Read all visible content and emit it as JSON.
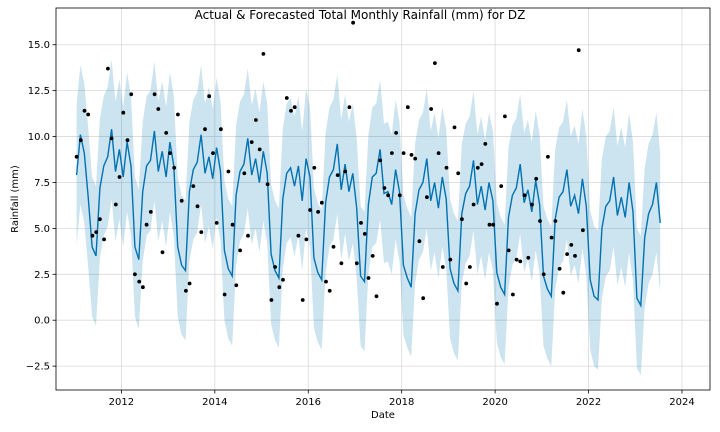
{
  "chart_data": {
    "type": "line",
    "title": "Actual & Forecasted Total Monthly Rainfall (mm) for DZ",
    "xlabel": "Date",
    "ylabel": "Rainfall (mm)",
    "xlim": [
      2010.6,
      2024.6
    ],
    "ylim": [
      -3.8,
      17.0
    ],
    "x_ticks": [
      2012,
      2014,
      2016,
      2018,
      2020,
      2022,
      2024
    ],
    "y_ticks": [
      -2.5,
      0.0,
      2.5,
      5.0,
      7.5,
      10.0,
      12.5,
      15.0
    ],
    "grid": true,
    "colors": {
      "forecast": "#0072B2",
      "band": "#0072B2",
      "actual": "#000000",
      "grid": "#d9d9d9"
    },
    "forecast": {
      "name": "yhat",
      "start_year": 2011.04,
      "step": 0.0833,
      "values": [
        7.9,
        10.1,
        9.1,
        6.7,
        4.0,
        3.5,
        7.2,
        8.4,
        8.9,
        10.4,
        8.1,
        9.3,
        7.8,
        9.7,
        8.4,
        4.0,
        3.3,
        7.0,
        8.4,
        8.7,
        10.3,
        8.1,
        9.2,
        7.8,
        9.7,
        8.4,
        4.0,
        3.0,
        2.7,
        7.0,
        8.2,
        8.6,
        10.1,
        8.0,
        8.9,
        7.7,
        9.4,
        8.1,
        3.8,
        2.8,
        2.4,
        6.8,
        8.1,
        8.5,
        9.9,
        7.9,
        8.8,
        7.5,
        9.2,
        8.0,
        3.6,
        2.7,
        2.3,
        6.6,
        8.0,
        8.3,
        7.3,
        8.4,
        6.5,
        8.8,
        7.8,
        3.4,
        2.6,
        2.2,
        6.4,
        7.8,
        8.2,
        9.6,
        7.1,
        8.5,
        7.0,
        8.0,
        6.1,
        2.4,
        2.1,
        6.3,
        7.8,
        8.0,
        9.3,
        6.9,
        7.0,
        6.3,
        8.2,
        7.0,
        3.0,
        2.3,
        1.8,
        5.8,
        7.1,
        7.5,
        8.8,
        6.5,
        7.5,
        6.1,
        7.8,
        6.6,
        2.8,
        2.0,
        1.6,
        5.8,
        6.9,
        7.3,
        8.7,
        6.3,
        7.3,
        6.0,
        7.5,
        6.5,
        2.6,
        1.8,
        1.4,
        5.6,
        6.8,
        7.2,
        8.5,
        6.4,
        7.1,
        5.9,
        7.6,
        6.3,
        2.4,
        1.7,
        1.3,
        5.5,
        6.7,
        7.0,
        8.2,
        6.2,
        6.8,
        5.8,
        7.7,
        6.2,
        2.2,
        1.3,
        1.1,
        5.0,
        6.2,
        6.5,
        7.8,
        5.7,
        6.7,
        5.6,
        7.5,
        5.9,
        1.2,
        0.8,
        4.5,
        5.8,
        6.3,
        7.5,
        5.3
      ]
    },
    "interval_halfwidth": 3.8,
    "actuals": [
      [
        2011.04,
        8.9
      ],
      [
        2011.13,
        9.8
      ],
      [
        2011.21,
        11.4
      ],
      [
        2011.29,
        11.2
      ],
      [
        2011.38,
        4.6
      ],
      [
        2011.46,
        4.8
      ],
      [
        2011.54,
        5.5
      ],
      [
        2011.63,
        4.4
      ],
      [
        2011.71,
        13.7
      ],
      [
        2011.79,
        9.9
      ],
      [
        2011.88,
        6.3
      ],
      [
        2011.96,
        7.8
      ],
      [
        2012.04,
        11.3
      ],
      [
        2012.13,
        9.8
      ],
      [
        2012.21,
        12.3
      ],
      [
        2012.29,
        2.5
      ],
      [
        2012.38,
        2.1
      ],
      [
        2012.46,
        1.8
      ],
      [
        2012.54,
        5.2
      ],
      [
        2012.63,
        5.9
      ],
      [
        2012.71,
        12.3
      ],
      [
        2012.79,
        11.5
      ],
      [
        2012.88,
        3.7
      ],
      [
        2012.96,
        10.2
      ],
      [
        2013.04,
        9.1
      ],
      [
        2013.13,
        8.3
      ],
      [
        2013.21,
        11.2
      ],
      [
        2013.29,
        6.5
      ],
      [
        2013.38,
        1.6
      ],
      [
        2013.46,
        2.0
      ],
      [
        2013.54,
        7.3
      ],
      [
        2013.63,
        6.2
      ],
      [
        2013.71,
        4.8
      ],
      [
        2013.79,
        10.4
      ],
      [
        2013.88,
        12.2
      ],
      [
        2013.96,
        9.1
      ],
      [
        2014.04,
        5.3
      ],
      [
        2014.13,
        10.4
      ],
      [
        2014.21,
        1.4
      ],
      [
        2014.29,
        8.1
      ],
      [
        2014.38,
        5.2
      ],
      [
        2014.46,
        1.9
      ],
      [
        2014.54,
        3.8
      ],
      [
        2014.63,
        8.0
      ],
      [
        2014.71,
        4.6
      ],
      [
        2014.79,
        9.7
      ],
      [
        2014.88,
        10.9
      ],
      [
        2014.96,
        9.3
      ],
      [
        2015.04,
        14.5
      ],
      [
        2015.13,
        7.4
      ],
      [
        2015.21,
        1.1
      ],
      [
        2015.29,
        2.9
      ],
      [
        2015.38,
        1.8
      ],
      [
        2015.46,
        2.2
      ],
      [
        2015.54,
        12.1
      ],
      [
        2015.63,
        11.4
      ],
      [
        2015.71,
        11.6
      ],
      [
        2015.79,
        4.6
      ],
      [
        2015.88,
        1.1
      ],
      [
        2015.96,
        4.4
      ],
      [
        2016.04,
        6.0
      ],
      [
        2016.13,
        8.3
      ],
      [
        2016.21,
        5.9
      ],
      [
        2016.29,
        6.4
      ],
      [
        2016.38,
        2.1
      ],
      [
        2016.46,
        1.6
      ],
      [
        2016.54,
        4.0
      ],
      [
        2016.63,
        7.9
      ],
      [
        2016.71,
        3.1
      ],
      [
        2016.79,
        8.1
      ],
      [
        2016.88,
        11.6
      ],
      [
        2016.96,
        16.2
      ],
      [
        2017.04,
        3.1
      ],
      [
        2017.13,
        5.3
      ],
      [
        2017.21,
        4.7
      ],
      [
        2017.29,
        2.3
      ],
      [
        2017.38,
        3.5
      ],
      [
        2017.46,
        1.3
      ],
      [
        2017.54,
        8.7
      ],
      [
        2017.63,
        7.2
      ],
      [
        2017.71,
        6.8
      ],
      [
        2017.79,
        9.1
      ],
      [
        2017.88,
        10.2
      ],
      [
        2017.96,
        6.8
      ],
      [
        2018.04,
        9.1
      ],
      [
        2018.13,
        11.6
      ],
      [
        2018.21,
        9.0
      ],
      [
        2018.29,
        8.8
      ],
      [
        2018.38,
        4.3
      ],
      [
        2018.46,
        1.2
      ],
      [
        2018.54,
        6.7
      ],
      [
        2018.63,
        11.5
      ],
      [
        2018.71,
        14.0
      ],
      [
        2018.79,
        9.1
      ],
      [
        2018.88,
        2.9
      ],
      [
        2018.96,
        8.3
      ],
      [
        2019.04,
        3.3
      ],
      [
        2019.13,
        10.5
      ],
      [
        2019.21,
        8.0
      ],
      [
        2019.29,
        5.5
      ],
      [
        2019.38,
        2.0
      ],
      [
        2019.46,
        2.9
      ],
      [
        2019.54,
        6.3
      ],
      [
        2019.63,
        8.3
      ],
      [
        2019.71,
        8.5
      ],
      [
        2019.79,
        9.6
      ],
      [
        2019.88,
        5.2
      ],
      [
        2019.96,
        5.2
      ],
      [
        2020.04,
        0.9
      ],
      [
        2020.13,
        7.3
      ],
      [
        2020.21,
        11.1
      ],
      [
        2020.29,
        3.8
      ],
      [
        2020.38,
        1.4
      ],
      [
        2020.46,
        3.3
      ],
      [
        2020.54,
        3.2
      ],
      [
        2020.63,
        6.8
      ],
      [
        2020.71,
        3.4
      ],
      [
        2020.79,
        6.3
      ],
      [
        2020.88,
        7.7
      ],
      [
        2020.96,
        5.4
      ],
      [
        2021.04,
        2.5
      ],
      [
        2021.13,
        8.9
      ],
      [
        2021.21,
        4.5
      ],
      [
        2021.29,
        5.4
      ],
      [
        2021.38,
        2.8
      ],
      [
        2021.46,
        1.5
      ],
      [
        2021.54,
        3.6
      ],
      [
        2021.63,
        4.1
      ],
      [
        2021.71,
        3.5
      ],
      [
        2021.79,
        14.7
      ],
      [
        2021.88,
        4.9
      ]
    ]
  }
}
